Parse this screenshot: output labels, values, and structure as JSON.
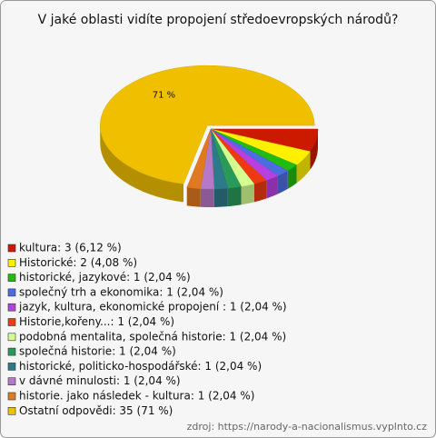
{
  "chart_data": {
    "type": "pie",
    "title": "V jaké oblasti vidíte propojení středoevropských národů?",
    "categories": [
      "kultura: 3 (6,12 %)",
      "Historické: 2 (4,08 %)",
      "historické, jazykové: 1 (2,04 %)",
      "společný trh a ekonomika: 1 (2,04 %)",
      "jazyk, kultura, ekonomické propojení : 1 (2,04 %)",
      "Historie,kořeny...: 1 (2,04 %)",
      "podobná mentalita, společná historie: 1 (2,04 %)",
      "společná historie: 1 (2,04 %)",
      "historické, politicko-hospodářské: 1 (2,04 %)",
      "v dávné minulosti: 1 (2,04 %)",
      "historie. jako následek  - kultura: 1 (2,04 %)",
      "Ostatní odpovědi: 35 (71 %)"
    ],
    "values": [
      3,
      2,
      1,
      1,
      1,
      1,
      1,
      1,
      1,
      1,
      1,
      35
    ],
    "value_labels": [
      null,
      null,
      null,
      null,
      null,
      null,
      null,
      null,
      null,
      null,
      null,
      "71 %"
    ],
    "colors": [
      "#cc1a00",
      "#fff000",
      "#22bb11",
      "#4a6ee0",
      "#b840e0",
      "#ee3a10",
      "#d4ff90",
      "#2a9a5a",
      "#2f7a8a",
      "#b878c8",
      "#e07a20",
      "#f0c000"
    ],
    "source": "zdroj: https://narody-a-nacionalismus.vyplnto.cz"
  }
}
